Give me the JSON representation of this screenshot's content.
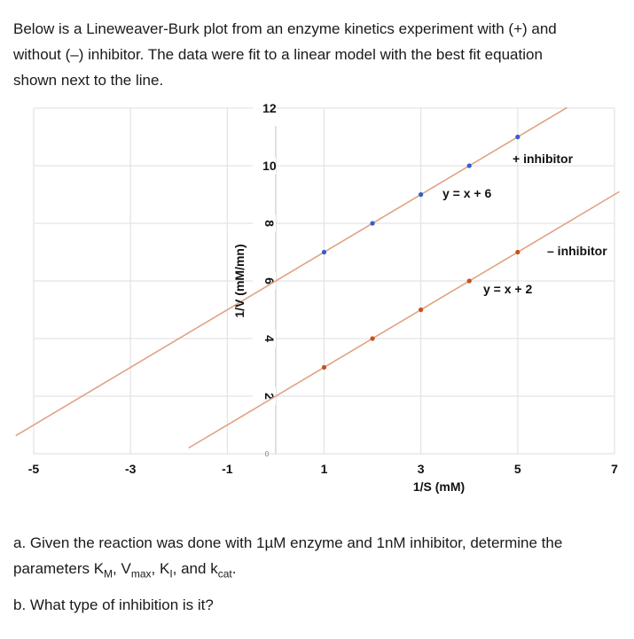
{
  "intro": {
    "line1": "Below is a Lineweaver-Burk plot from an enzyme kinetics experiment with (+) and",
    "line2": "without (–) inhibitor.  The data were fit to a linear model with the best fit equation",
    "line3": "shown next to the line."
  },
  "questions": {
    "a_line1": "a.  Given the reaction was done with 1µM enzyme and 1nM inhibitor, determine the",
    "a_line2_prefix": "parameters K",
    "a_km_sub": "M",
    "a_sep1": ", V",
    "a_vmax_sub": "max",
    "a_sep2": ", K",
    "a_ki_sub": "I",
    "a_sep3": ", and k",
    "a_kcat_sub": "cat",
    "a_end": ".",
    "b": "b.  What type of inhibition is it?"
  },
  "chart_data": {
    "type": "line",
    "title": "",
    "xlabel": "1/S (mM)",
    "ylabel": "1/V (mM/mn)",
    "xlim": [
      -5,
      7
    ],
    "ylim": [
      0,
      12
    ],
    "x_ticks": [
      "-5",
      "-3",
      "-1",
      "1",
      "3",
      "5",
      "7"
    ],
    "y_ticks": [
      "0",
      "2",
      "4",
      "6",
      "8",
      "10",
      "12"
    ],
    "grid": true,
    "series": [
      {
        "name": "+ inhibitor",
        "equation": "y = x + 6",
        "x": [
          1,
          2,
          3,
          4,
          5
        ],
        "y": [
          7,
          8,
          9,
          10,
          11
        ],
        "marker_color": "#2f5fd0",
        "line_color": "#e2a283"
      },
      {
        "name": "– inhibitor",
        "equation": "y = x + 2",
        "x": [
          1,
          2,
          3,
          4,
          5
        ],
        "y": [
          3,
          4,
          5,
          6,
          7
        ],
        "marker_color": "#c8501e",
        "line_color": "#e2a283"
      }
    ]
  }
}
